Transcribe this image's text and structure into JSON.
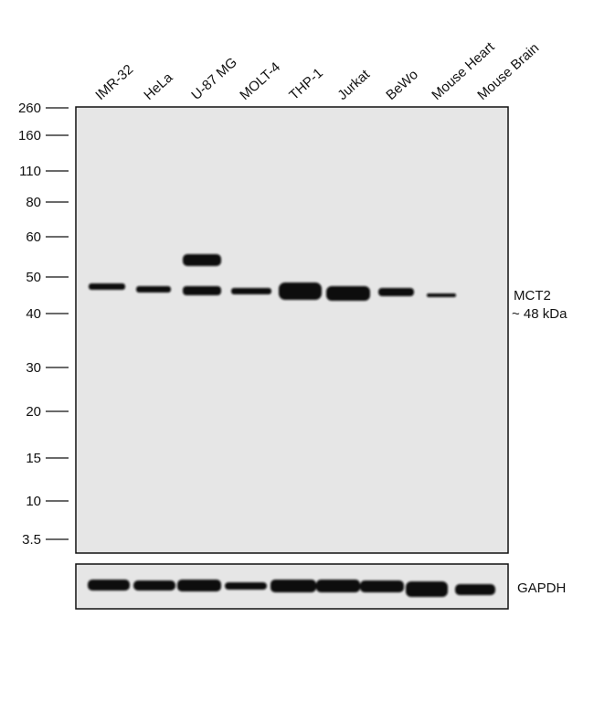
{
  "lanes": [
    "IMR-32",
    "HeLa",
    "U-87 MG",
    "MOLT-4",
    "THP-1",
    "Jurkat",
    "BeWo",
    "Mouse Heart",
    "Mouse Brain"
  ],
  "markers": [
    "260",
    "160",
    "110",
    "80",
    "60",
    "50",
    "40",
    "30",
    "20",
    "15",
    "10",
    "3.5"
  ],
  "band_labels": {
    "target": "MCT2",
    "size": "~ 48 kDa",
    "loading_control": "GAPDH"
  }
}
